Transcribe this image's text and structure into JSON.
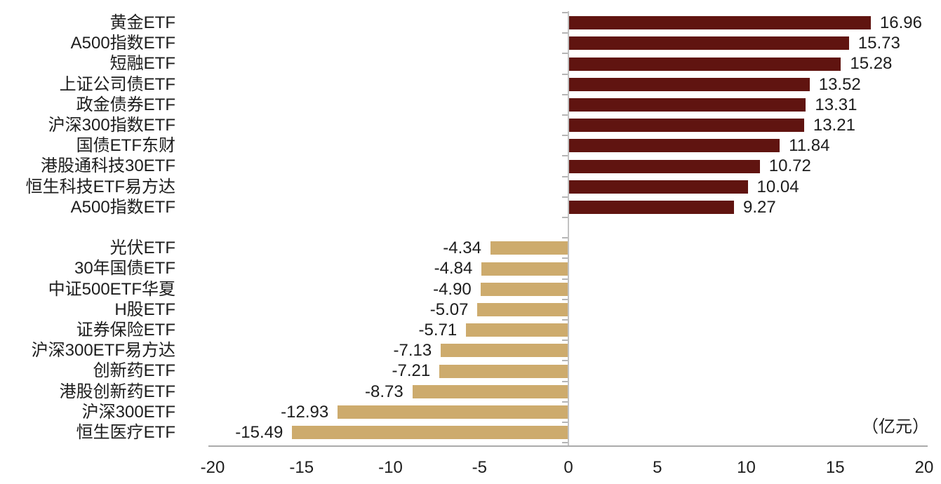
{
  "chart_data": {
    "type": "bar",
    "orientation": "horizontal",
    "title": "",
    "xlabel": "",
    "ylabel": "",
    "unit_label": "（亿元）",
    "xlim": [
      -20,
      20
    ],
    "x_ticks": [
      -20,
      -15,
      -10,
      -5,
      0,
      5,
      10,
      15,
      20
    ],
    "grid": false,
    "legend": "none",
    "value_decimals": 2,
    "positive_color": "#601410",
    "negative_color": "#cdab6d",
    "gap_after_index": 9,
    "items": [
      {
        "label": "黄金ETF",
        "value": 16.96
      },
      {
        "label": "A500指数ETF",
        "value": 15.73
      },
      {
        "label": "短融ETF",
        "value": 15.28
      },
      {
        "label": "上证公司债ETF",
        "value": 13.52
      },
      {
        "label": "政金债券ETF",
        "value": 13.31
      },
      {
        "label": "沪深300指数ETF",
        "value": 13.21
      },
      {
        "label": "国债ETF东财",
        "value": 11.84
      },
      {
        "label": "港股通科技30ETF",
        "value": 10.72
      },
      {
        "label": "恒生科技ETF易方达",
        "value": 10.04
      },
      {
        "label": "A500指数ETF",
        "value": 9.27
      },
      {
        "label": "光伏ETF",
        "value": -4.34
      },
      {
        "label": "30年国债ETF",
        "value": -4.84
      },
      {
        "label": "中证500ETF华夏",
        "value": -4.9
      },
      {
        "label": "H股ETF",
        "value": -5.07
      },
      {
        "label": "证券保险ETF",
        "value": -5.71
      },
      {
        "label": "沪深300ETF易方达",
        "value": -7.13
      },
      {
        "label": "创新药ETF",
        "value": -7.21
      },
      {
        "label": "港股创新药ETF",
        "value": -8.73
      },
      {
        "label": "沪深300ETF",
        "value": -12.93
      },
      {
        "label": "恒生医疗ETF",
        "value": -15.49
      }
    ]
  }
}
